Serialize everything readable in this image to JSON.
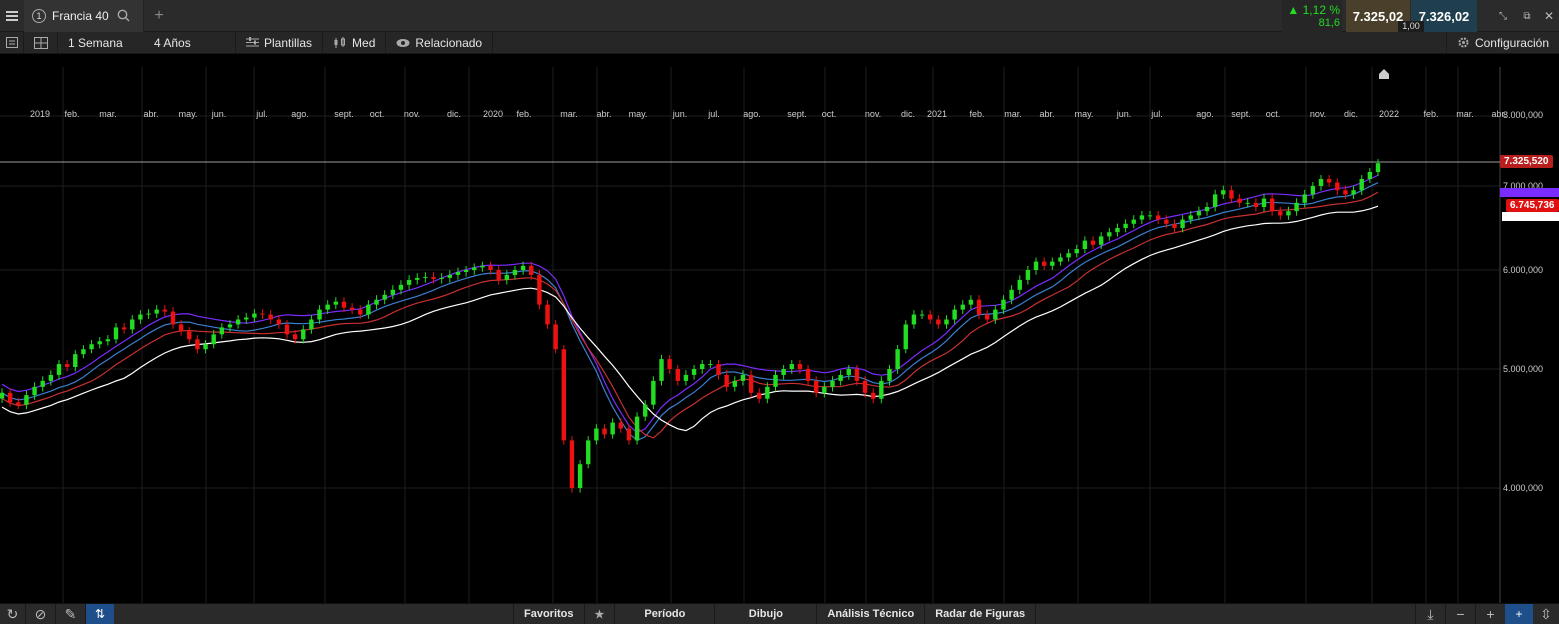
{
  "instrument": {
    "number": "1",
    "name": "Francia 40"
  },
  "quote": {
    "change_pct": "▲ 1,12 %",
    "change_pts": "81,6",
    "bid": "7.325,02",
    "ask": "7.326,02",
    "spread": "1,00"
  },
  "toolbar": {
    "interval": "1 Semana",
    "range": "4 Años",
    "templates": "Plantillas",
    "type": "Med",
    "related": "Relacionado",
    "settings": "Configuración"
  },
  "months": [
    "2019",
    "feb.",
    "mar.",
    "abr.",
    "may.",
    "jun.",
    "jul.",
    "ago.",
    "sept.",
    "oct.",
    "nov.",
    "dic.",
    "2020",
    "feb.",
    "mar.",
    "abr.",
    "may.",
    "jun.",
    "jul.",
    "ago.",
    "sept.",
    "oct.",
    "nov.",
    "dic.",
    "2021",
    "feb.",
    "mar.",
    "abr.",
    "may.",
    "jun.",
    "jul.",
    "ago.",
    "sept.",
    "oct.",
    "nov.",
    "dic.",
    "2022",
    "feb.",
    "mar.",
    "abr."
  ],
  "yaxis": [
    "8.000,000",
    "7.000,000",
    "6.000,000",
    "5.000,000",
    "4.000,000"
  ],
  "price_labels": {
    "last": "7.325,520",
    "ma": "6.745,736"
  },
  "bottom": {
    "favorites": "Favoritos",
    "period": "Período",
    "drawing": "Dibujo",
    "technical": "Análisis Técnico",
    "patterns": "Radar de Figuras"
  },
  "colors": {
    "up": "#22dd22",
    "down": "#ee1111",
    "ma_purple": "#7a2cff",
    "ma_blue": "#3a7fd0",
    "ma_red": "#c83030",
    "ma_white": "#ffffff",
    "accent": "#1f4f8a"
  },
  "chart_data": {
    "type": "candlestick",
    "interval": "weekly",
    "ylim": [
      3400,
      8500
    ],
    "closes": [
      4800,
      4720,
      4700,
      4780,
      4850,
      4900,
      4950,
      5050,
      5020,
      5150,
      5200,
      5250,
      5280,
      5300,
      5420,
      5400,
      5500,
      5550,
      5560,
      5600,
      5580,
      5450,
      5380,
      5300,
      5200,
      5250,
      5350,
      5420,
      5450,
      5500,
      5520,
      5560,
      5550,
      5500,
      5450,
      5350,
      5300,
      5400,
      5500,
      5600,
      5650,
      5680,
      5620,
      5600,
      5550,
      5650,
      5700,
      5750,
      5800,
      5850,
      5900,
      5920,
      5930,
      5910,
      5920,
      5950,
      5980,
      6000,
      6030,
      6050,
      6000,
      5900,
      5950,
      6000,
      6050,
      5950,
      5650,
      5450,
      5200,
      4400,
      4000,
      4200,
      4400,
      4500,
      4450,
      4550,
      4500,
      4400,
      4600,
      4700,
      4900,
      5100,
      5000,
      4900,
      4950,
      5000,
      5050,
      5050,
      4950,
      4850,
      4900,
      4950,
      4800,
      4750,
      4850,
      4950,
      5000,
      5050,
      5000,
      4900,
      4800,
      4850,
      4900,
      4950,
      5000,
      4900,
      4800,
      4750,
      4900,
      5000,
      5200,
      5450,
      5550,
      5550,
      5500,
      5450,
      5500,
      5600,
      5650,
      5700,
      5550,
      5500,
      5600,
      5700,
      5800,
      5900,
      6000,
      6100,
      6050,
      6100,
      6150,
      6200,
      6250,
      6350,
      6300,
      6400,
      6450,
      6500,
      6550,
      6600,
      6650,
      6650,
      6600,
      6550,
      6500,
      6600,
      6650,
      6700,
      6750,
      6900,
      6950,
      6850,
      6800,
      6800,
      6750,
      6850,
      6700,
      6650,
      6700,
      6800,
      6900,
      7000,
      7100,
      7050,
      6950,
      6900,
      6950,
      7100,
      7200,
      7325
    ]
  }
}
